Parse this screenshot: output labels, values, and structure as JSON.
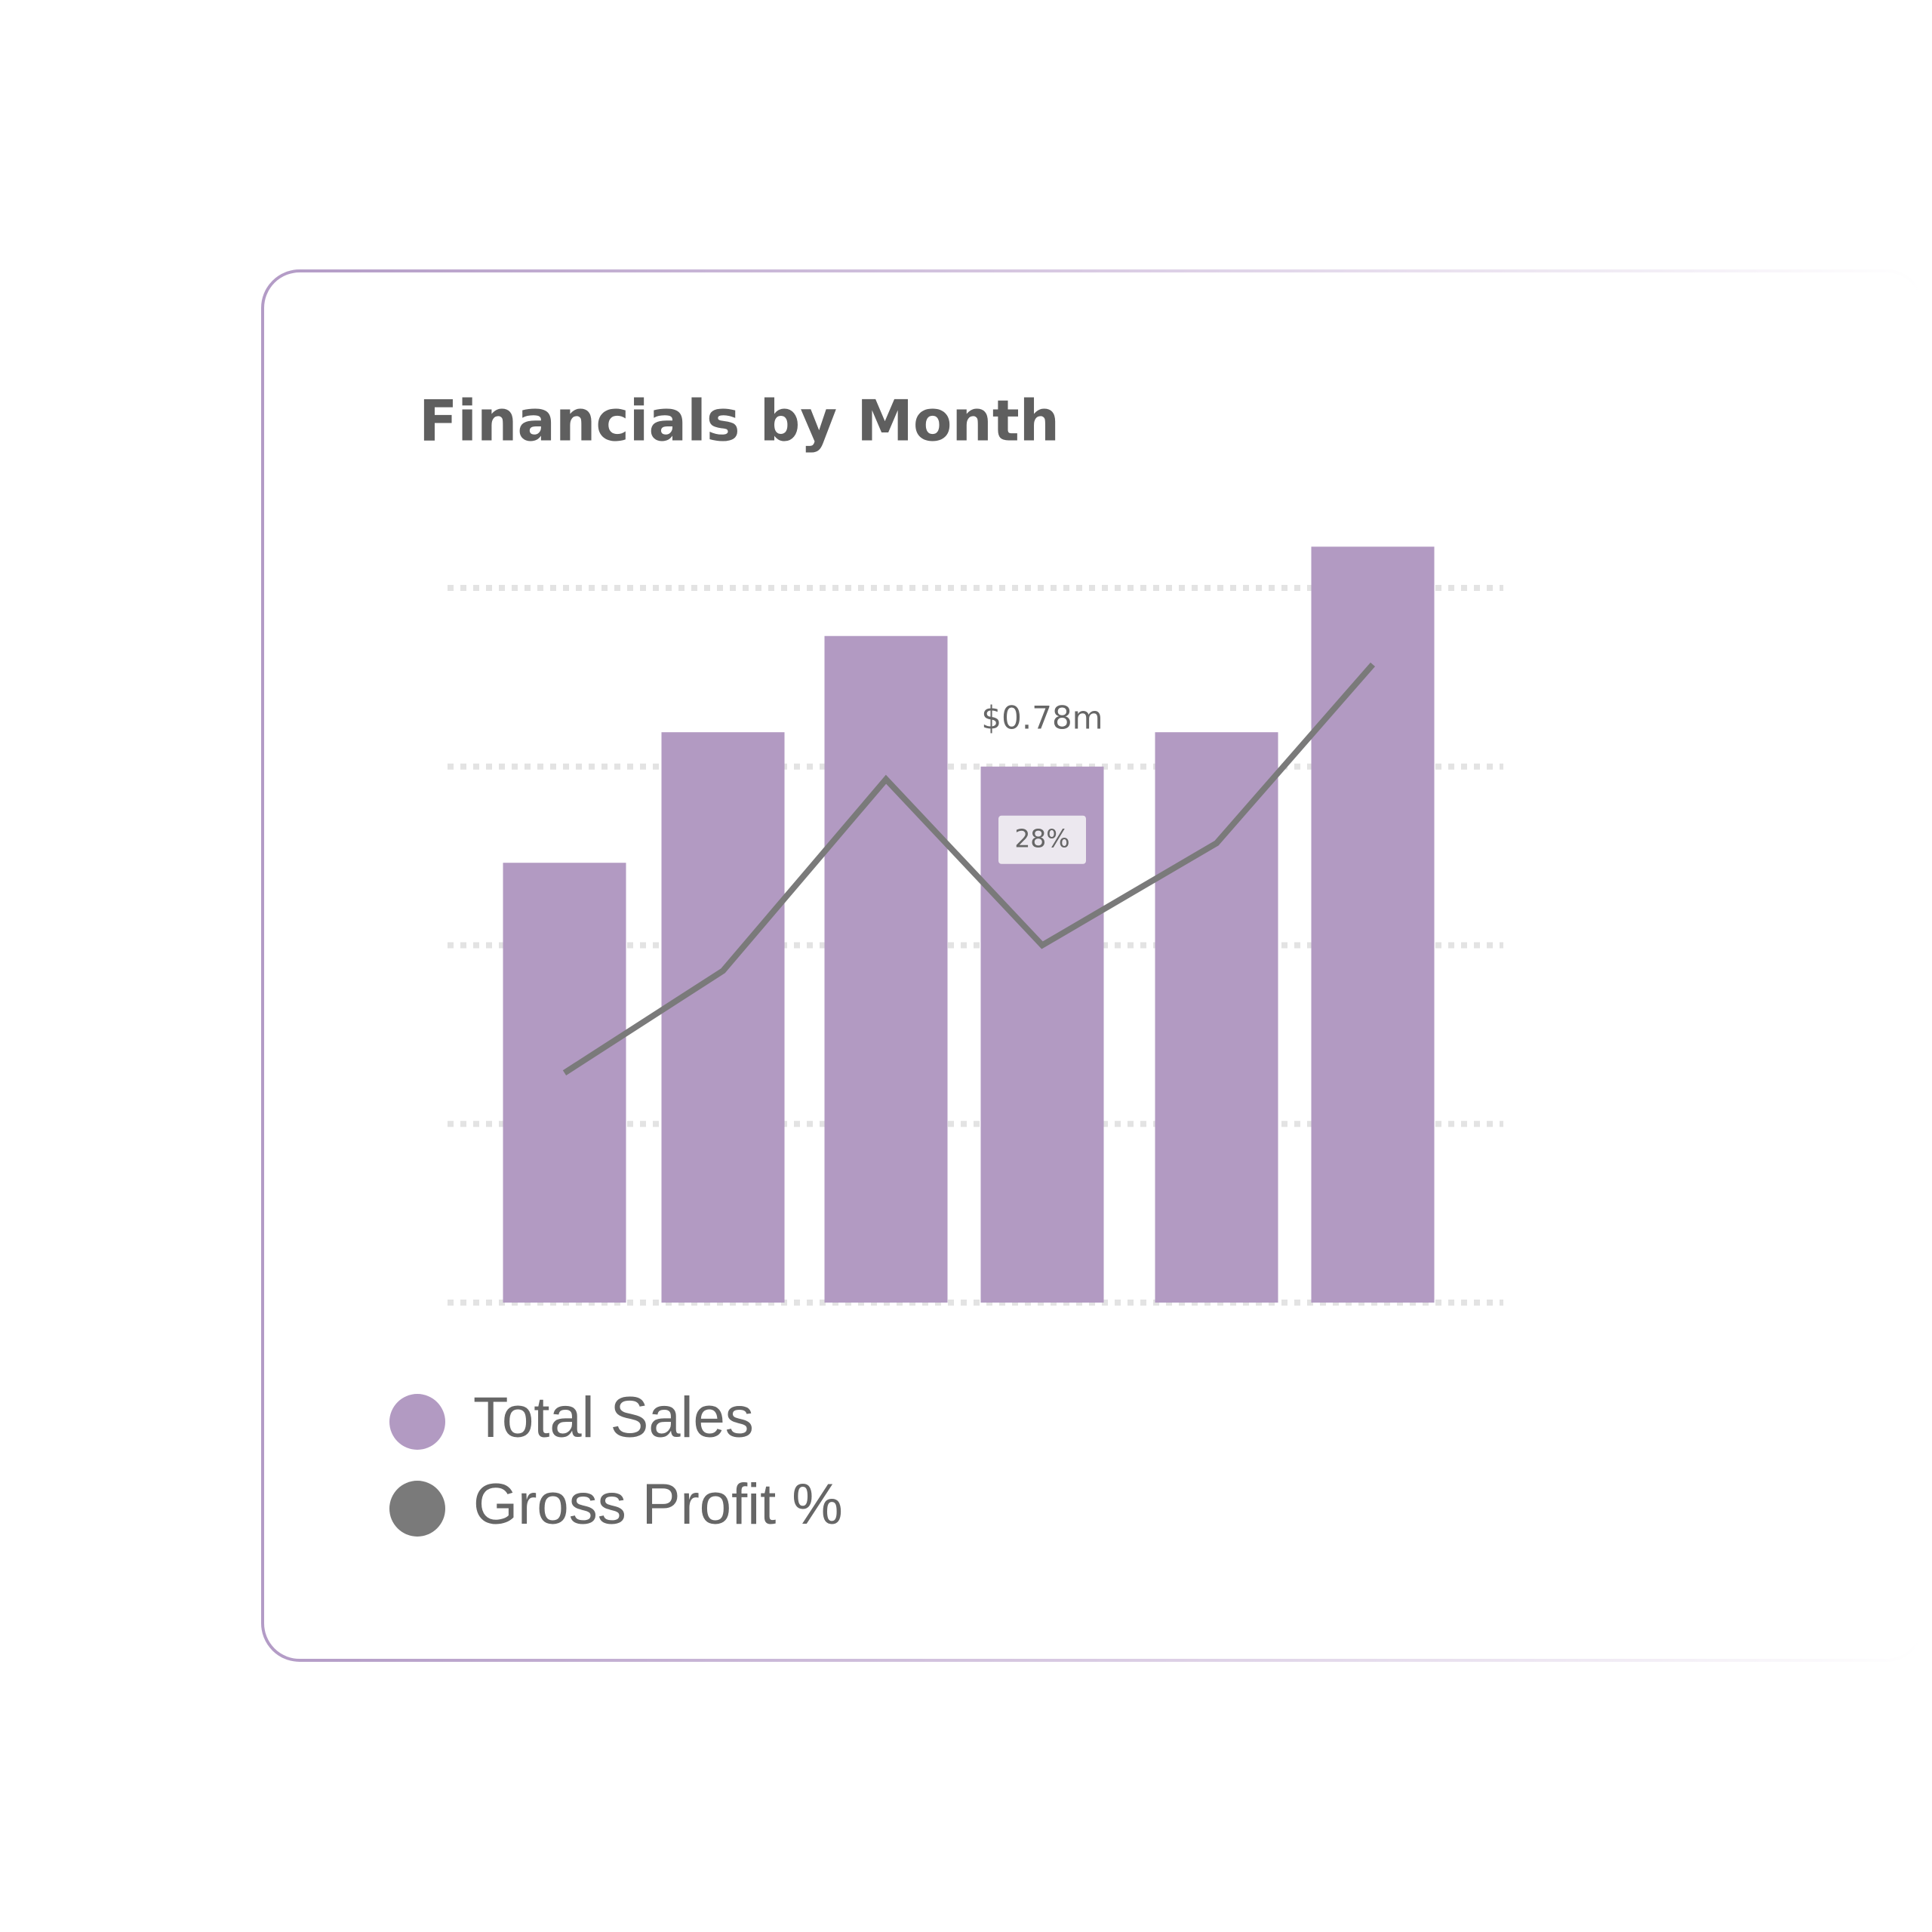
{
  "chart_data": {
    "type": "bar",
    "title": "Financials by Month",
    "categories": [
      null,
      null,
      null,
      null,
      null,
      null
    ],
    "series": [
      {
        "name": "Total Sales",
        "color": "#b29ac2",
        "values": [
          0.64,
          0.83,
          0.97,
          0.78,
          0.83,
          1.1
        ],
        "value_labels": [
          null,
          null,
          null,
          "$0.78m",
          null,
          null
        ]
      },
      {
        "name": "Gross Profit %",
        "color": "#7a7a7a",
        "type": "line",
        "axis": "y2",
        "values": [
          18,
          26,
          41,
          28,
          36,
          50
        ],
        "value_labels": [
          null,
          null,
          null,
          "28%",
          null,
          null
        ]
      }
    ],
    "ylim": [
      0,
      1.04
    ],
    "yticks": [
      0,
      0.26,
      0.52,
      0.78,
      1.04
    ],
    "y2lim": [
      0,
      56
    ],
    "grid": true
  }
}
